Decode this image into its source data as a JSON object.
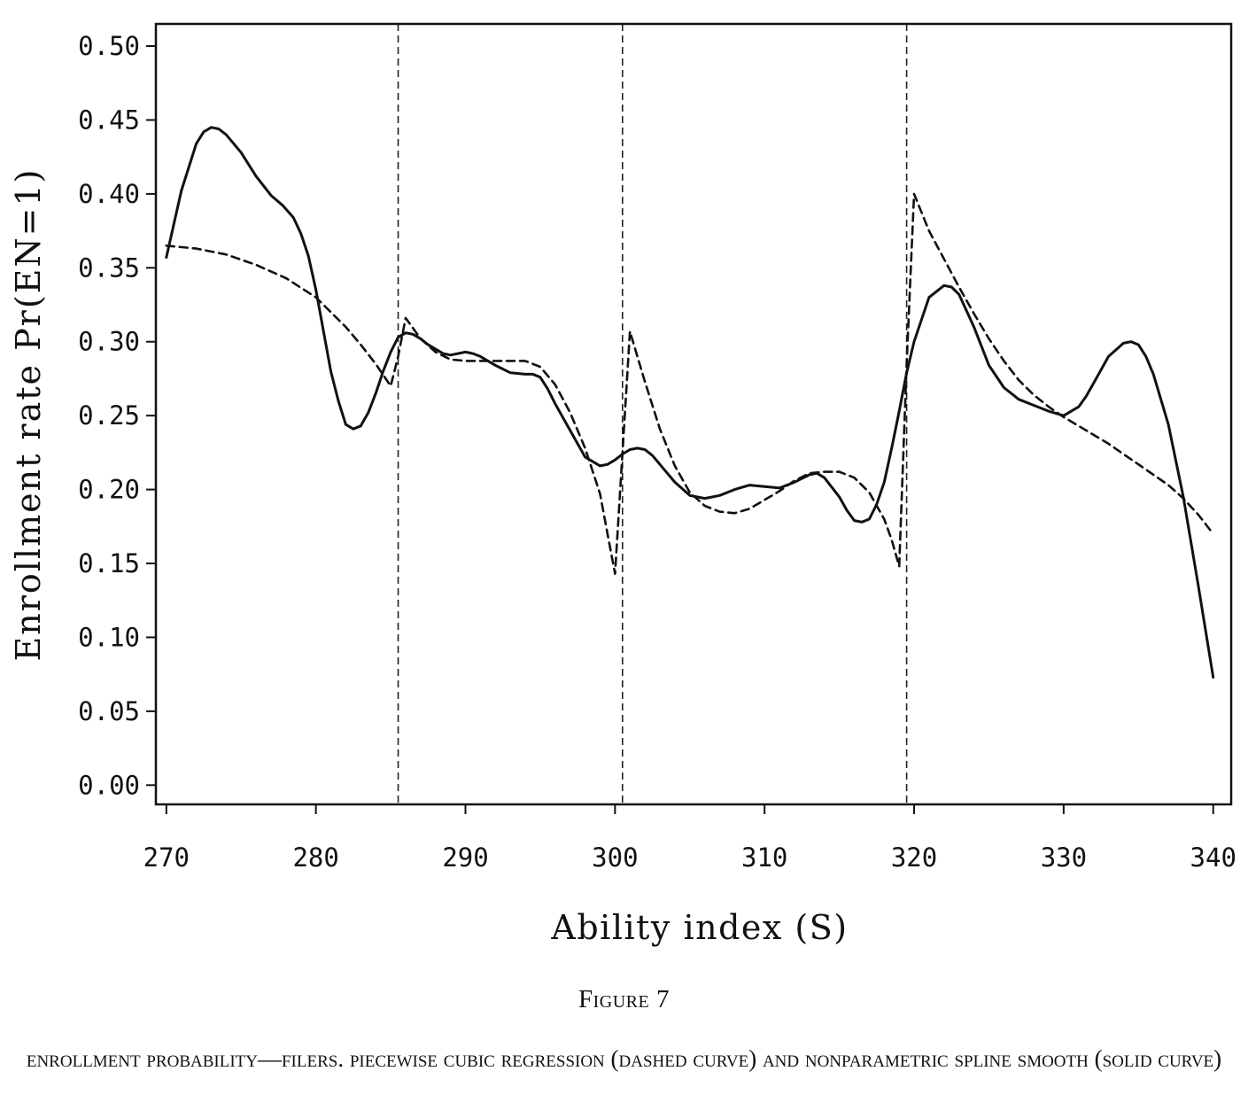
{
  "figure": {
    "label": "Figure 7",
    "caption": "ENROLLMENT PROBABILITY—FILERS. PIECEWISE CUBIC REGRESSION (DASHED CURVE) AND NONPARAMETRIC SPLINE SMOOTH (SOLID CURVE)"
  },
  "chart_data": {
    "type": "line",
    "title": "",
    "xlabel": "Ability index (S)",
    "ylabel": "Enrollment rate Pr(EN=1)",
    "xlim": [
      269.3,
      341.2
    ],
    "ylim": [
      -0.013,
      0.515
    ],
    "x_ticks": [
      270,
      280,
      290,
      300,
      310,
      320,
      330,
      340
    ],
    "x_tick_labels": [
      "270",
      "280",
      "290",
      "300",
      "310",
      "320",
      "330",
      "340"
    ],
    "y_ticks": [
      0.0,
      0.05,
      0.1,
      0.15,
      0.2,
      0.25,
      0.3,
      0.35,
      0.4,
      0.45,
      0.5
    ],
    "y_tick_labels": [
      "0.00",
      "0.05",
      "0.10",
      "0.15",
      "0.20",
      "0.25",
      "0.30",
      "0.35",
      "0.40",
      "0.45",
      "0.50"
    ],
    "grid": false,
    "vertical_lines": [
      285.5,
      300.5,
      319.5
    ],
    "series": [
      {
        "style": "solid",
        "x": [
          270,
          271,
          272,
          272.5,
          273,
          273.5,
          274,
          275,
          276,
          277,
          277.8,
          278.5,
          279,
          279.5,
          280,
          281,
          281.5,
          282,
          282.5,
          283,
          283.5,
          284,
          284.5,
          285,
          285.5,
          286,
          286.5,
          287,
          287.5,
          288,
          288.5,
          289,
          290,
          290.5,
          291,
          292,
          293,
          294,
          294.5,
          295,
          295.5,
          296,
          297,
          298,
          299,
          299.5,
          300,
          300.5,
          301,
          301.5,
          302,
          302.5,
          303,
          304,
          305,
          306,
          307,
          308,
          309,
          310,
          311,
          312,
          313,
          313.5,
          314,
          315,
          315.5,
          316,
          316.5,
          317,
          317.5,
          318,
          318.5,
          319,
          319.5,
          320,
          321,
          322,
          322.5,
          323,
          324,
          325,
          326,
          327,
          328,
          329,
          330,
          331,
          331.5,
          332,
          333,
          334,
          334.5,
          335,
          335.5,
          336,
          337,
          338,
          339,
          340
        ],
        "y": [
          0.357,
          0.402,
          0.434,
          0.442,
          0.445,
          0.444,
          0.44,
          0.428,
          0.412,
          0.399,
          0.392,
          0.384,
          0.373,
          0.358,
          0.335,
          0.28,
          0.26,
          0.244,
          0.241,
          0.243,
          0.252,
          0.265,
          0.28,
          0.293,
          0.303,
          0.306,
          0.305,
          0.302,
          0.298,
          0.295,
          0.292,
          0.291,
          0.293,
          0.292,
          0.29,
          0.284,
          0.279,
          0.278,
          0.278,
          0.276,
          0.268,
          0.258,
          0.24,
          0.222,
          0.216,
          0.217,
          0.22,
          0.224,
          0.227,
          0.228,
          0.227,
          0.223,
          0.217,
          0.205,
          0.196,
          0.194,
          0.196,
          0.2,
          0.203,
          0.202,
          0.201,
          0.205,
          0.21,
          0.211,
          0.208,
          0.195,
          0.186,
          0.179,
          0.178,
          0.18,
          0.19,
          0.205,
          0.228,
          0.253,
          0.279,
          0.3,
          0.33,
          0.338,
          0.337,
          0.332,
          0.31,
          0.284,
          0.269,
          0.261,
          0.257,
          0.253,
          0.25,
          0.256,
          0.263,
          0.272,
          0.29,
          0.299,
          0.3,
          0.298,
          0.29,
          0.278,
          0.244,
          0.195,
          0.135,
          0.073
        ]
      },
      {
        "style": "dashed",
        "x": [
          270,
          272,
          274,
          276,
          278,
          280,
          282,
          283,
          284,
          285,
          285.5,
          286,
          287,
          288,
          289,
          290,
          291,
          292,
          293,
          294,
          295,
          296,
          297,
          298,
          299,
          299.5,
          300,
          300.5,
          301,
          302,
          303,
          304,
          305,
          306,
          307,
          308,
          309,
          310,
          311,
          312,
          313,
          314,
          315,
          316,
          317,
          318,
          318.5,
          319,
          319.5,
          320,
          321,
          322,
          323,
          324,
          325,
          326,
          327,
          328,
          329,
          330,
          331,
          332,
          333,
          334,
          335,
          336,
          337,
          338,
          339,
          340
        ],
        "y": [
          0.365,
          0.363,
          0.359,
          0.352,
          0.343,
          0.33,
          0.31,
          0.298,
          0.285,
          0.27,
          0.29,
          0.316,
          0.302,
          0.293,
          0.288,
          0.287,
          0.287,
          0.287,
          0.287,
          0.287,
          0.283,
          0.271,
          0.252,
          0.228,
          0.197,
          0.17,
          0.143,
          0.225,
          0.307,
          0.273,
          0.241,
          0.216,
          0.198,
          0.189,
          0.185,
          0.184,
          0.187,
          0.193,
          0.199,
          0.206,
          0.211,
          0.212,
          0.212,
          0.208,
          0.198,
          0.18,
          0.166,
          0.148,
          0.285,
          0.4,
          0.375,
          0.356,
          0.337,
          0.319,
          0.302,
          0.287,
          0.274,
          0.264,
          0.256,
          0.249,
          0.243,
          0.237,
          0.231,
          0.224,
          0.217,
          0.21,
          0.203,
          0.194,
          0.183,
          0.17
        ]
      }
    ]
  }
}
